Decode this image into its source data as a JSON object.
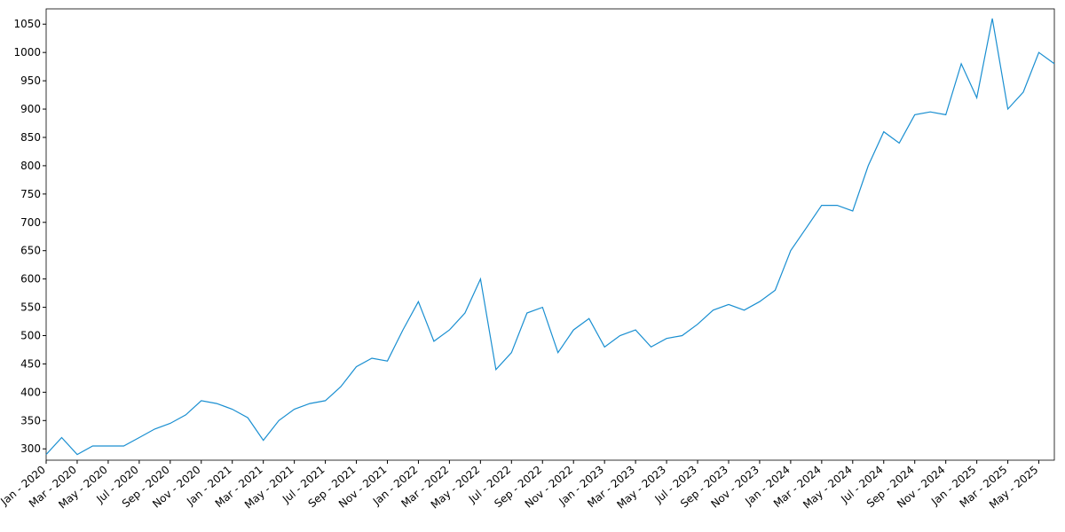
{
  "chart_data": {
    "type": "line",
    "x": [
      "2020-01",
      "2020-02",
      "2020-03",
      "2020-04",
      "2020-05",
      "2020-06",
      "2020-07",
      "2020-08",
      "2020-09",
      "2020-10",
      "2020-11",
      "2020-12",
      "2021-01",
      "2021-02",
      "2021-03",
      "2021-04",
      "2021-05",
      "2021-06",
      "2021-07",
      "2021-08",
      "2021-09",
      "2021-10",
      "2021-11",
      "2021-12",
      "2022-01",
      "2022-02",
      "2022-03",
      "2022-04",
      "2022-05",
      "2022-06",
      "2022-07",
      "2022-08",
      "2022-09",
      "2022-10",
      "2022-11",
      "2022-12",
      "2023-01",
      "2023-02",
      "2023-03",
      "2023-04",
      "2023-05",
      "2023-06",
      "2023-07",
      "2023-08",
      "2023-09",
      "2023-10",
      "2023-11",
      "2023-12",
      "2024-01",
      "2024-02",
      "2024-03",
      "2024-04",
      "2024-05",
      "2024-06",
      "2024-07",
      "2024-08",
      "2024-09",
      "2024-10",
      "2024-11",
      "2024-12",
      "2025-01",
      "2025-02",
      "2025-03",
      "2025-04",
      "2025-05",
      "2025-06"
    ],
    "series": [
      {
        "color": "#1a8fd1",
        "values": [
          290,
          320,
          290,
          305,
          305,
          305,
          320,
          335,
          345,
          360,
          385,
          380,
          370,
          355,
          315,
          350,
          370,
          380,
          385,
          410,
          445,
          460,
          455,
          510,
          560,
          490,
          510,
          540,
          600,
          440,
          470,
          540,
          550,
          470,
          510,
          530,
          480,
          500,
          510,
          480,
          495,
          500,
          520,
          545,
          555,
          545,
          560,
          580,
          650,
          690,
          730,
          730,
          720,
          800,
          860,
          840,
          890,
          895,
          890,
          980,
          920,
          1060,
          900,
          930,
          1000,
          980
        ]
      }
    ],
    "xlim": [
      "2020-01",
      "2025-06"
    ],
    "xticks": [
      {
        "value": "2020-01",
        "label": "Jan - 2020"
      },
      {
        "value": "2020-03",
        "label": "Mar - 2020"
      },
      {
        "value": "2020-05",
        "label": "May - 2020"
      },
      {
        "value": "2020-07",
        "label": "Jul - 2020"
      },
      {
        "value": "2020-09",
        "label": "Sep - 2020"
      },
      {
        "value": "2020-11",
        "label": "Nov - 2020"
      },
      {
        "value": "2021-01",
        "label": "Jan - 2021"
      },
      {
        "value": "2021-03",
        "label": "Mar - 2021"
      },
      {
        "value": "2021-05",
        "label": "May - 2021"
      },
      {
        "value": "2021-07",
        "label": "Jul - 2021"
      },
      {
        "value": "2021-09",
        "label": "Sep - 2021"
      },
      {
        "value": "2021-11",
        "label": "Nov - 2021"
      },
      {
        "value": "2022-01",
        "label": "Jan - 2022"
      },
      {
        "value": "2022-03",
        "label": "Mar - 2022"
      },
      {
        "value": "2022-05",
        "label": "May - 2022"
      },
      {
        "value": "2022-07",
        "label": "Jul - 2022"
      },
      {
        "value": "2022-09",
        "label": "Sep - 2022"
      },
      {
        "value": "2022-11",
        "label": "Nov - 2022"
      },
      {
        "value": "2023-01",
        "label": "Jan - 2023"
      },
      {
        "value": "2023-03",
        "label": "Mar - 2023"
      },
      {
        "value": "2023-05",
        "label": "May - 2023"
      },
      {
        "value": "2023-07",
        "label": "Jul - 2023"
      },
      {
        "value": "2023-09",
        "label": "Sep - 2023"
      },
      {
        "value": "2023-11",
        "label": "Nov - 2023"
      },
      {
        "value": "2024-01",
        "label": "Jan - 2024"
      },
      {
        "value": "2024-03",
        "label": "Mar - 2024"
      },
      {
        "value": "2024-05",
        "label": "May - 2024"
      },
      {
        "value": "2024-07",
        "label": "Jul - 2024"
      },
      {
        "value": "2024-09",
        "label": "Sep - 2024"
      },
      {
        "value": "2024-11",
        "label": "Nov - 2024"
      },
      {
        "value": "2025-01",
        "label": "Jan - 2025"
      },
      {
        "value": "2025-03",
        "label": "Mar - 2025"
      },
      {
        "value": "2025-05",
        "label": "May - 2025"
      }
    ],
    "ylim": [
      280,
      1077
    ],
    "yticks": [
      300,
      350,
      400,
      450,
      500,
      550,
      600,
      650,
      700,
      750,
      800,
      850,
      900,
      950,
      1000,
      1050
    ],
    "grid": false
  }
}
